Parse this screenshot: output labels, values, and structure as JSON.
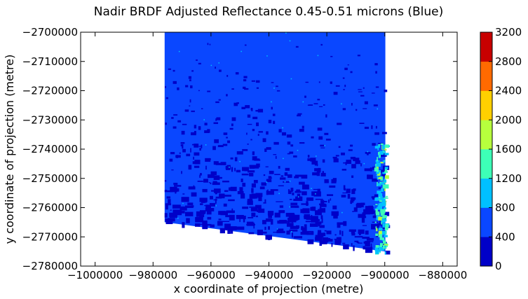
{
  "chart_data": {
    "type": "heatmap",
    "title": "Nadir BRDF Adjusted Reflectance 0.45-0.51 microns (Blue)",
    "xlabel": "x coordinate of projection (metre)",
    "ylabel": "y coordinate of projection (metre)",
    "xlim": [
      -1005000,
      -875000
    ],
    "ylim": [
      -2780000,
      -2700000
    ],
    "x_ticks": [
      -1000000,
      -980000,
      -960000,
      -940000,
      -920000,
      -900000,
      -880000
    ],
    "x_tick_labels": [
      "−1000000",
      "−980000",
      "−960000",
      "−940000",
      "−920000",
      "−900000",
      "−880000"
    ],
    "y_ticks": [
      -2700000,
      -2710000,
      -2720000,
      -2730000,
      -2740000,
      -2750000,
      -2760000,
      -2770000,
      -2780000
    ],
    "y_tick_labels": [
      "−2700000",
      "−2710000",
      "−2720000",
      "−2730000",
      "−2740000",
      "−2750000",
      "−2760000",
      "−2770000",
      "−2780000"
    ],
    "grid": false,
    "colorbar": {
      "levels": [
        0,
        400,
        800,
        1200,
        1600,
        2000,
        2400,
        2800,
        3200
      ],
      "tick_labels": [
        "0",
        "400",
        "800",
        "1200",
        "1600",
        "2000",
        "2400",
        "2800",
        "3200"
      ],
      "colors": [
        "#0000c8",
        "#0a47ff",
        "#00c0ff",
        "#3dffb7",
        "#b7ff3d",
        "#ffd000",
        "#ff6a00",
        "#c80000"
      ]
    },
    "data_extent": {
      "x_min": -976000,
      "x_max": -899800,
      "y_top": -2700000,
      "y_bottom_left": -2765000,
      "y_bottom_right": -2775000
    },
    "dominant_value_class": "400-800",
    "background_color": "#0a47ff"
  }
}
